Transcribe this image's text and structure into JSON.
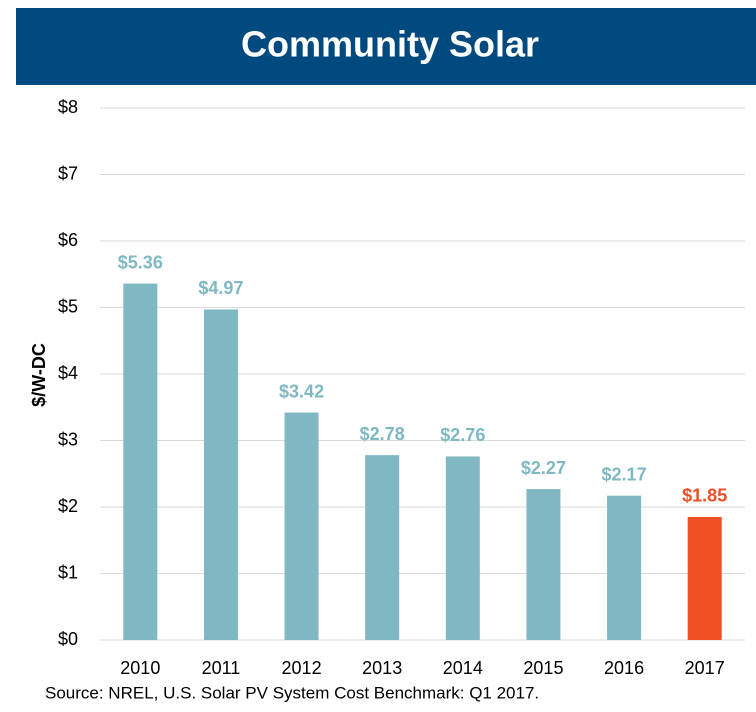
{
  "chart_data": {
    "type": "bar",
    "title": "Community Solar",
    "y_label": "$/W-DC",
    "note": "Source: NREL, U.S. Solar PV System Cost Benchmark: Q1 2017.",
    "categories": [
      "2010",
      "2011",
      "2012",
      "2013",
      "2014",
      "2015",
      "2016",
      "2017"
    ],
    "values": [
      5.36,
      4.97,
      3.42,
      2.78,
      2.76,
      2.27,
      2.17,
      1.85
    ],
    "value_labels": [
      "$5.36",
      "$4.97",
      "$3.42",
      "$2.78",
      "$2.76",
      "$2.27",
      "$2.17",
      "$1.85"
    ],
    "colors": [
      "#7fb8c2",
      "#7fb8c2",
      "#7fb8c2",
      "#7fb8c2",
      "#7fb8c2",
      "#7fb8c2",
      "#7fb8c2",
      "#f04e23"
    ],
    "ylim": [
      0,
      8
    ],
    "yticks": [
      {
        "value": 0,
        "label": "$0"
      },
      {
        "value": 1,
        "label": "$1"
      },
      {
        "value": 2,
        "label": "$2"
      },
      {
        "value": 3,
        "label": "$3"
      },
      {
        "value": 4,
        "label": "$4"
      },
      {
        "value": 5,
        "label": "$5"
      },
      {
        "value": 6,
        "label": "$6"
      },
      {
        "value": 7,
        "label": "$7"
      },
      {
        "value": 8,
        "label": "$8"
      }
    ],
    "grid": true
  }
}
